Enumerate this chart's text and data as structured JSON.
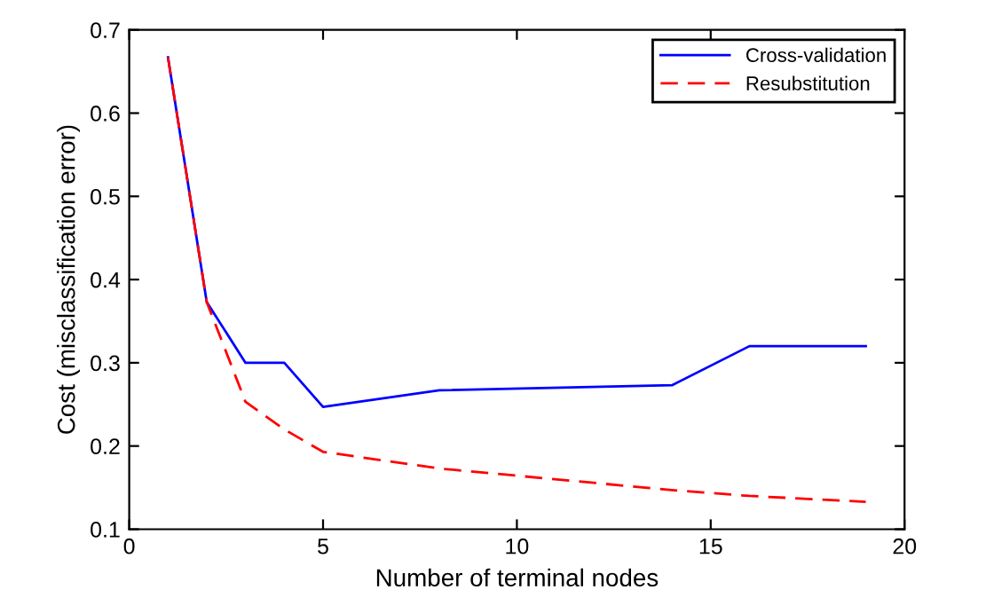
{
  "chart_data": {
    "type": "line",
    "xlabel": "Number of terminal nodes",
    "ylabel": "Cost (misclassification error)",
    "xlim": [
      0,
      20
    ],
    "xticks": [
      0,
      5,
      10,
      15,
      20
    ],
    "ylim": [
      0.1,
      0.7
    ],
    "yticks": [
      0.1,
      0.2,
      0.3,
      0.4,
      0.5,
      0.6,
      0.7
    ],
    "grid": false,
    "legend": "top right",
    "marker": "none",
    "series": [
      {
        "name": "Cross-validation",
        "color": "#0000ff",
        "line_style": "solid",
        "x": [
          1,
          2,
          3,
          4,
          5,
          8,
          14,
          16,
          19
        ],
        "values": [
          0.667,
          0.373,
          0.3,
          0.3,
          0.247,
          0.267,
          0.273,
          0.32,
          0.32
        ]
      },
      {
        "name": "Resubstitution",
        "color": "#ff0000",
        "line_style": "dashed",
        "x": [
          1,
          2,
          3,
          4,
          5,
          8,
          14,
          16,
          19
        ],
        "values": [
          0.667,
          0.373,
          0.253,
          0.22,
          0.193,
          0.173,
          0.147,
          0.14,
          0.133
        ]
      }
    ]
  }
}
